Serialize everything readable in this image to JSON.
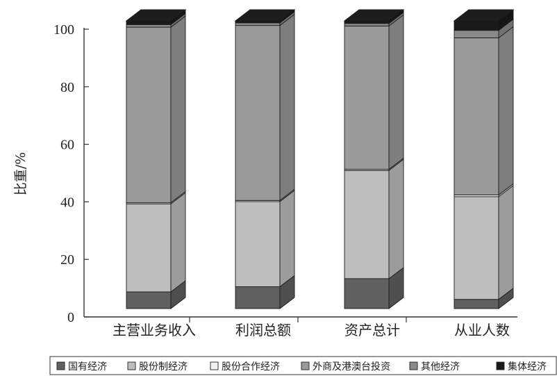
{
  "chart_data": {
    "type": "bar",
    "stacked": true,
    "style": "3d",
    "categories": [
      "主营业务收入",
      "利润总额",
      "资产总计",
      "从业人数"
    ],
    "ylabel": "比重/%",
    "xlabel": "",
    "ylim": [
      0,
      100
    ],
    "yticks": [
      0,
      20,
      40,
      60,
      80,
      100
    ],
    "grid": false,
    "legend_position": "bottom",
    "series": [
      {
        "name": "国有经济",
        "values": [
          5.8,
          7.6,
          10.4,
          3.2
        ],
        "color": "#606060"
      },
      {
        "name": "股份制经济",
        "values": [
          30.6,
          29.6,
          37.6,
          35.7
        ],
        "color": "#bebebe"
      },
      {
        "name": "股份合作经济",
        "values": [
          0.4,
          0.4,
          0.4,
          0.6
        ],
        "color": "#f2f2f2"
      },
      {
        "name": "外商及港澳台投资",
        "values": [
          61.0,
          60.8,
          49.8,
          54.6
        ],
        "color": "#9a9a9a"
      },
      {
        "name": "其他经济",
        "values": [
          0.9,
          0.9,
          0.9,
          2.6
        ],
        "color": "#8a8a8a"
      },
      {
        "name": "集体经济",
        "values": [
          1.3,
          0.7,
          0.9,
          3.3
        ],
        "color": "#1a1a1a"
      }
    ]
  }
}
